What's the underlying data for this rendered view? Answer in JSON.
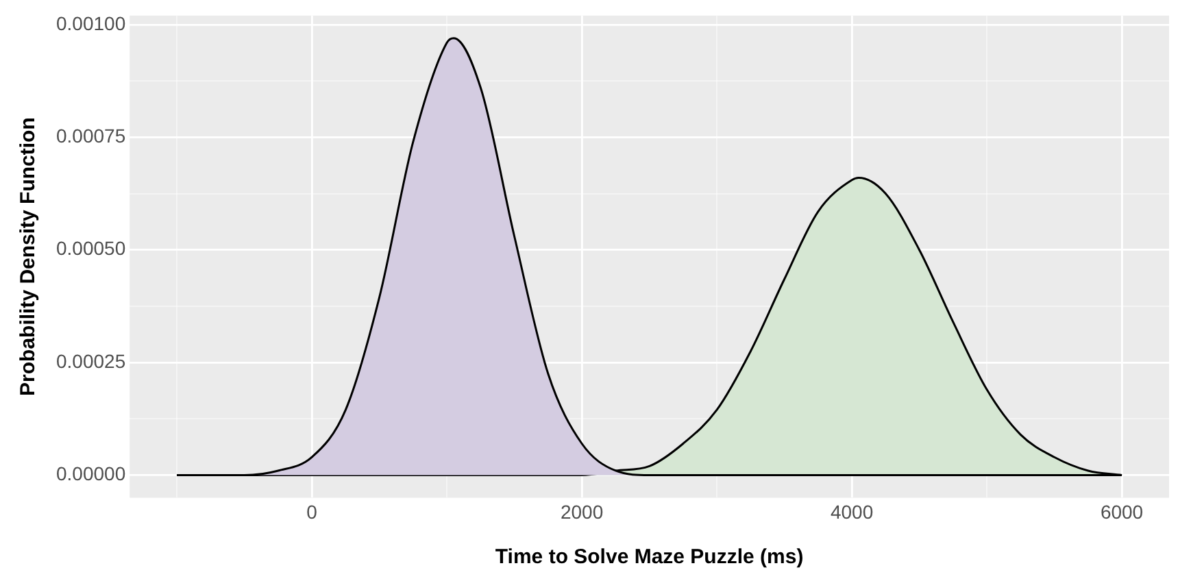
{
  "chart_data": {
    "type": "area",
    "xlabel": "Time to Solve Maze Puzzle (ms)",
    "ylabel": "Probability Density Function",
    "series": [
      {
        "color": "#d4cce1",
        "x": [
          -1000,
          -750,
          -500,
          -250,
          0,
          250,
          500,
          750,
          1000,
          1050,
          1250,
          1500,
          1750,
          2000,
          2250,
          2500,
          2750,
          3000,
          3500,
          4000,
          4500,
          5000,
          5500,
          6000
        ],
        "values": [
          0,
          0,
          0,
          1e-05,
          4e-05,
          0.000145,
          0.000395,
          0.00074,
          0.00096,
          0.00097,
          0.00086,
          0.00053,
          0.000225,
          7e-05,
          1e-05,
          0,
          0,
          0,
          0,
          0,
          0,
          0,
          0,
          0
        ]
      },
      {
        "color": "#d6e7d3",
        "x": [
          -1000,
          0,
          1000,
          1500,
          1750,
          2000,
          2250,
          2500,
          2750,
          3000,
          3250,
          3500,
          3750,
          4000,
          4050,
          4250,
          4500,
          4750,
          5000,
          5250,
          5500,
          5750,
          6000
        ],
        "values": [
          0,
          0,
          0,
          0,
          0,
          0,
          1e-05,
          2e-05,
          7e-05,
          0.000145,
          0.000275,
          0.000435,
          0.000585,
          0.000655,
          0.00066,
          0.000625,
          0.0005,
          0.00034,
          0.00019,
          9e-05,
          4e-05,
          1e-05,
          0
        ]
      }
    ],
    "xlim": [
      -1350,
      6350
    ],
    "xticks": [
      {
        "value": -1000,
        "label": null
      },
      0,
      {
        "value": 1000,
        "label": null
      },
      2000,
      {
        "value": 3000,
        "label": null
      },
      4000,
      {
        "value": 5000,
        "label": null
      },
      6000
    ],
    "ylim": [
      -5e-05,
      0.00102
    ],
    "yticks": [
      {
        "value": 0,
        "label": "0.00000"
      },
      {
        "value": 0.000125,
        "label": null
      },
      {
        "value": 0.00025,
        "label": "0.00025"
      },
      {
        "value": 0.000375,
        "label": null
      },
      {
        "value": 0.0005,
        "label": "0.00050"
      },
      {
        "value": 0.000625,
        "label": null
      },
      {
        "value": 0.00075,
        "label": "0.00075"
      },
      {
        "value": 0.000875,
        "label": null
      },
      {
        "value": 0.001,
        "label": "0.00100"
      }
    ],
    "grid": true,
    "legend": false
  }
}
